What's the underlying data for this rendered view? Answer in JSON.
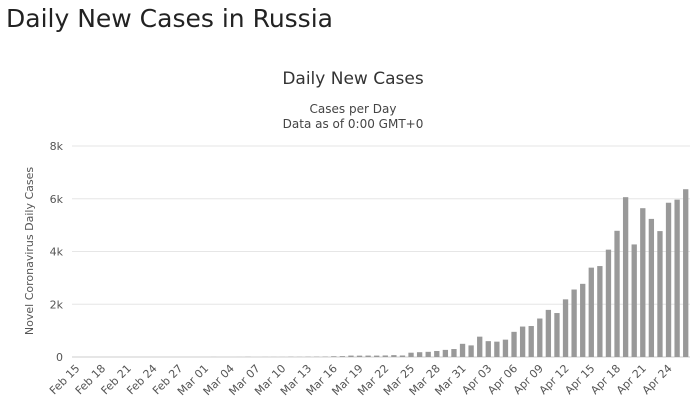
{
  "page": {
    "title": "Daily New Cases in Russia"
  },
  "colors": {
    "bar": "#999999",
    "grid": "#e6e6e6",
    "axis": "#cccccc"
  },
  "chart_data": {
    "type": "bar",
    "title": "Daily New Cases",
    "subtitle_lines": [
      "Cases per Day",
      "Data as of 0:00 GMT+0"
    ],
    "ylabel": "Novel Coronavirus Daily Cases",
    "xlabel": "",
    "ylim": [
      0,
      8000
    ],
    "y_ticks": [
      {
        "value": 0,
        "label": "0"
      },
      {
        "value": 2000,
        "label": "2k"
      },
      {
        "value": 4000,
        "label": "4k"
      },
      {
        "value": 6000,
        "label": "6k"
      },
      {
        "value": 8000,
        "label": "8k"
      }
    ],
    "grid": true,
    "x_tick_labels": [
      "Feb 15",
      "Feb 18",
      "Feb 21",
      "Feb 24",
      "Feb 27",
      "Mar 01",
      "Mar 04",
      "Mar 07",
      "Mar 10",
      "Mar 13",
      "Mar 16",
      "Mar 19",
      "Mar 22",
      "Mar 25",
      "Mar 28",
      "Mar 31",
      "Apr 03",
      "Apr 06",
      "Apr 09",
      "Apr 12",
      "Apr 15",
      "Apr 18",
      "Apr 21",
      "Apr 24"
    ],
    "categories": [
      "Feb 15",
      "Feb 16",
      "Feb 17",
      "Feb 18",
      "Feb 19",
      "Feb 20",
      "Feb 21",
      "Feb 22",
      "Feb 23",
      "Feb 24",
      "Feb 25",
      "Feb 26",
      "Feb 27",
      "Feb 28",
      "Feb 29",
      "Mar 01",
      "Mar 02",
      "Mar 03",
      "Mar 04",
      "Mar 05",
      "Mar 06",
      "Mar 07",
      "Mar 08",
      "Mar 09",
      "Mar 10",
      "Mar 11",
      "Mar 12",
      "Mar 13",
      "Mar 14",
      "Mar 15",
      "Mar 16",
      "Mar 17",
      "Mar 18",
      "Mar 19",
      "Mar 20",
      "Mar 21",
      "Mar 22",
      "Mar 23",
      "Mar 24",
      "Mar 25",
      "Mar 26",
      "Mar 27",
      "Mar 28",
      "Mar 29",
      "Mar 30",
      "Mar 31",
      "Apr 01",
      "Apr 02",
      "Apr 03",
      "Apr 04",
      "Apr 05",
      "Apr 06",
      "Apr 07",
      "Apr 08",
      "Apr 09",
      "Apr 10",
      "Apr 11",
      "Apr 12",
      "Apr 13",
      "Apr 14",
      "Apr 15",
      "Apr 16",
      "Apr 17",
      "Apr 18",
      "Apr 19",
      "Apr 20",
      "Apr 21",
      "Apr 22",
      "Apr 23",
      "Apr 24",
      "Apr 25",
      "Apr 26"
    ],
    "values": [
      0,
      0,
      0,
      0,
      0,
      0,
      0,
      0,
      0,
      0,
      0,
      0,
      0,
      0,
      0,
      0,
      2,
      0,
      0,
      1,
      6,
      0,
      3,
      3,
      3,
      8,
      6,
      10,
      11,
      14,
      29,
      33,
      54,
      52,
      54,
      53,
      58,
      71,
      57,
      163,
      182,
      196,
      228,
      270,
      302,
      500,
      440,
      771,
      601,
      582,
      658,
      954,
      1154,
      1175,
      1459,
      1786,
      1667,
      2186,
      2558,
      2774,
      3388,
      3448,
      4070,
      4785,
      6060,
      4268,
      5642,
      5236,
      4774,
      5849,
      5966,
      6361
    ]
  }
}
